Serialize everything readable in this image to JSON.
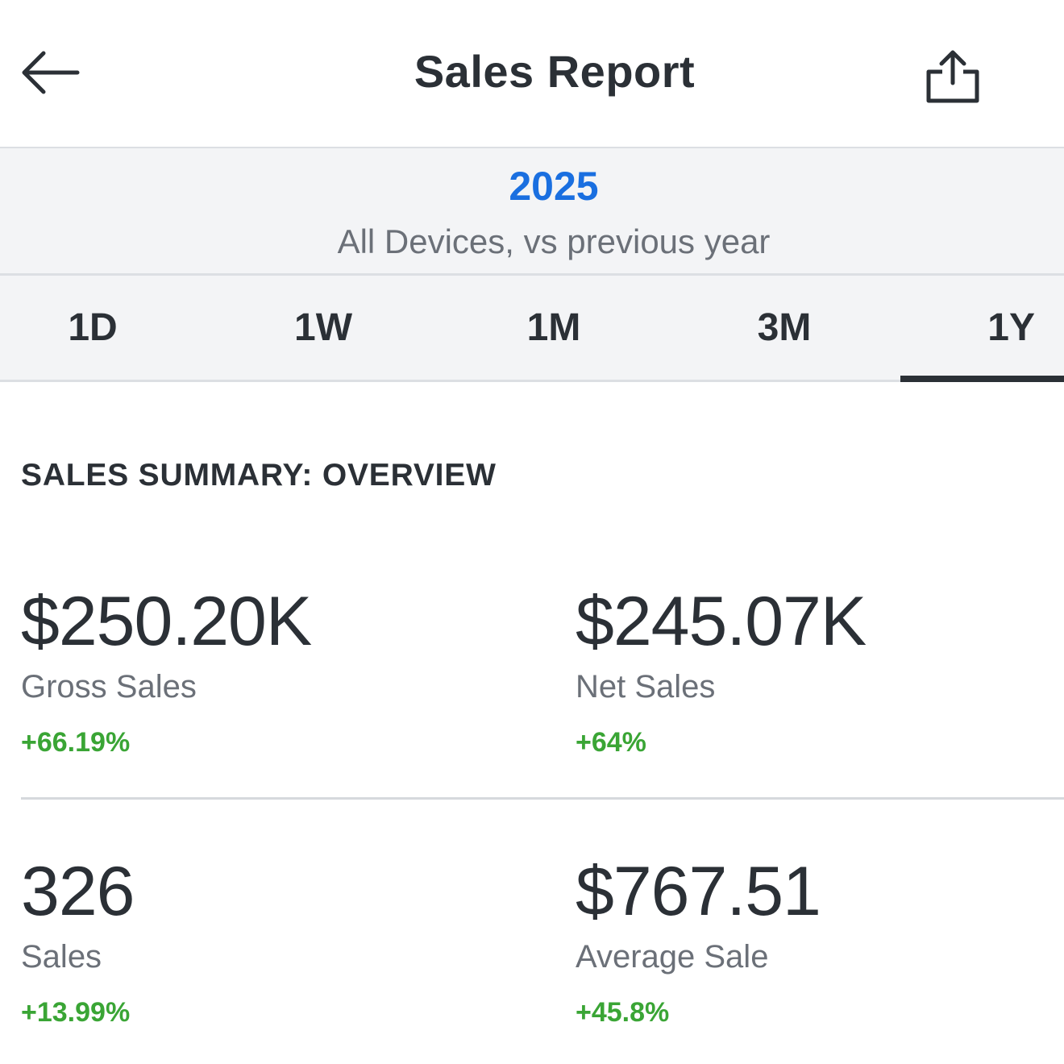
{
  "header": {
    "title": "Sales Report",
    "back_icon": "arrow-left-icon",
    "share_icon": "share-icon"
  },
  "period": {
    "year": "2025",
    "description": "All Devices, vs previous year"
  },
  "tabs": [
    {
      "label": "1D",
      "active": false
    },
    {
      "label": "1W",
      "active": false
    },
    {
      "label": "1M",
      "active": false
    },
    {
      "label": "3M",
      "active": false
    },
    {
      "label": "1Y",
      "active": true
    }
  ],
  "summary": {
    "title": "SALES SUMMARY: OVERVIEW",
    "metrics": [
      {
        "value": "$250.20K",
        "label": "Gross Sales",
        "change": "+66.19%"
      },
      {
        "value": "$245.07K",
        "label": "Net Sales",
        "change": "+64%"
      },
      {
        "value": "326",
        "label": "Sales",
        "change": "+13.99%"
      },
      {
        "value": "$767.51",
        "label": "Average Sale",
        "change": "+45.8%"
      }
    ]
  },
  "colors": {
    "accent": "#1a6fe0",
    "positive": "#3aa535",
    "text": "#2b3036",
    "muted": "#6b7078",
    "banner_bg": "#f3f4f6"
  }
}
